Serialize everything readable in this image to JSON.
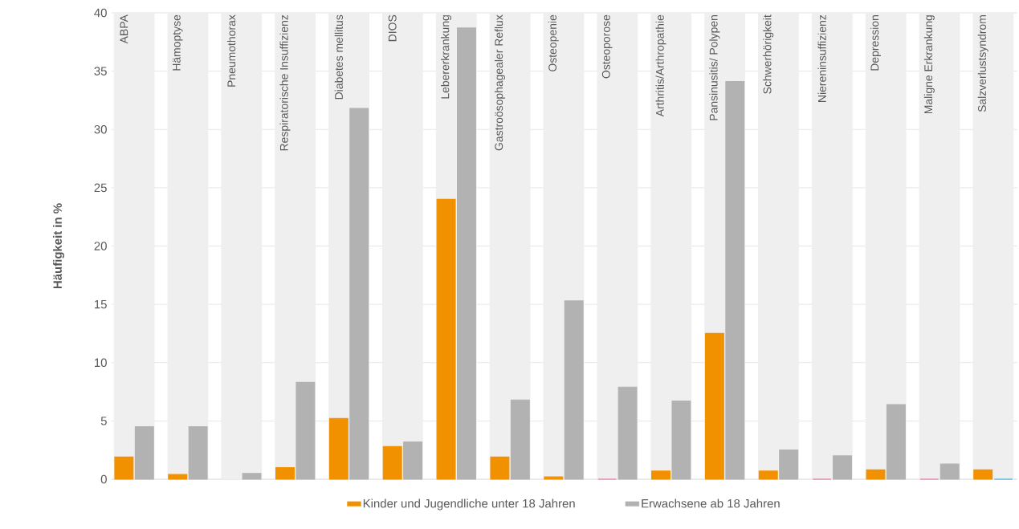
{
  "chart_data": {
    "type": "bar",
    "ylabel": "Häufigkeit in %",
    "categories": [
      "ABPA",
      "Hämoptyse",
      "Pneumothorax",
      "Respiratorische Insuffizienz",
      "Diabetes mellitus",
      "DIOS",
      "Lebererkrankung",
      "Gastroösophagealer Reflux",
      "Osteopenie",
      "Osteoporose",
      "Arthritis/Arthropathie",
      "Pansinusitis/ Polypen",
      "Schwerhörigkeit",
      "Niereninsuffizienz",
      "Depression",
      "Maligne Erkrankung",
      "Salzverlustsyndrom"
    ],
    "series": [
      {
        "name": "Kinder und Jugendliche unter 18 Jahren",
        "color": "#f29100",
        "colors": [
          "#f29100",
          "#f29100",
          null,
          "#f29100",
          "#f29100",
          "#f29100",
          "#f29100",
          "#f29100",
          "#f29100",
          "#e0609a",
          "#f29100",
          "#f29100",
          "#f29100",
          "#e0609a",
          "#f29100",
          "#e0609a",
          "#f29100"
        ],
        "values": [
          1.9,
          0.4,
          null,
          1.0,
          5.2,
          2.8,
          24.0,
          1.9,
          0.2,
          0,
          0.7,
          12.5,
          0.7,
          0,
          0.8,
          0,
          0.8
        ]
      },
      {
        "name": "Erwachsene ab 18 Jahren",
        "color": "#b2b2b2",
        "colors": [
          "#b2b2b2",
          "#b2b2b2",
          "#b2b2b2",
          "#b2b2b2",
          "#b2b2b2",
          "#b2b2b2",
          "#b2b2b2",
          "#b2b2b2",
          "#b2b2b2",
          "#b2b2b2",
          "#b2b2b2",
          "#b2b2b2",
          "#b2b2b2",
          "#b2b2b2",
          "#b2b2b2",
          "#b2b2b2",
          "#2a9fd8"
        ],
        "values": [
          4.5,
          4.5,
          0.5,
          8.3,
          31.8,
          3.2,
          38.7,
          6.8,
          15.3,
          7.9,
          6.7,
          34.1,
          2.5,
          2.0,
          6.4,
          1.3,
          0
        ]
      }
    ],
    "ylim": [
      0,
      40
    ],
    "yticks": [
      0,
      5,
      10,
      15,
      20,
      25,
      30,
      35,
      40
    ],
    "grid": "y",
    "legend": "bottom",
    "bands": [
      {
        "axis": "x",
        "from": "ABPA",
        "to": "ABPA",
        "color": "#efefef"
      },
      {
        "axis": "x",
        "from": "Hämoptyse",
        "to": "Hämoptyse",
        "color": "#efefef"
      },
      {
        "axis": "x",
        "from": "Pneumothorax",
        "to": "Pneumothorax",
        "color": "#efefef"
      },
      {
        "axis": "x",
        "from": "Respiratorische Insuffizienz",
        "to": "Respiratorische Insuffizienz",
        "color": "#efefef"
      },
      {
        "axis": "x",
        "from": "Diabetes mellitus",
        "to": "Diabetes mellitus",
        "color": "#efefef"
      },
      {
        "axis": "x",
        "from": "DIOS",
        "to": "DIOS",
        "color": "#efefef"
      },
      {
        "axis": "x",
        "from": "Lebererkrankung",
        "to": "Lebererkrankung",
        "color": "#efefef"
      },
      {
        "axis": "x",
        "from": "Gastroösophagealer Reflux",
        "to": "Gastroösophagealer Reflux",
        "color": "#efefef"
      },
      {
        "axis": "x",
        "from": "Osteopenie",
        "to": "Osteopenie",
        "color": "#efefef"
      },
      {
        "axis": "x",
        "from": "Osteoporose",
        "to": "Osteoporose",
        "color": "#efefef"
      },
      {
        "axis": "x",
        "from": "Arthritis/Arthropathie",
        "to": "Arthritis/Arthropathie",
        "color": "#efefef"
      },
      {
        "axis": "x",
        "from": "Pansinusitis/ Polypen",
        "to": "Pansinusitis/ Polypen",
        "color": "#efefef"
      },
      {
        "axis": "x",
        "from": "Schwerhörigkeit",
        "to": "Schwerhörigkeit",
        "color": "#efefef"
      },
      {
        "axis": "x",
        "from": "Niereninsuffizienz",
        "to": "Niereninsuffizienz",
        "color": "#efefef"
      },
      {
        "axis": "x",
        "from": "Depression",
        "to": "Depression",
        "color": "#efefef"
      },
      {
        "axis": "x",
        "from": "Maligne Erkrankung",
        "to": "Maligne Erkrankung",
        "color": "#efefef"
      },
      {
        "axis": "x",
        "from": "Salzverlustsyndrom",
        "to": "Salzverlustsyndrom",
        "color": "#efefef"
      }
    ]
  }
}
